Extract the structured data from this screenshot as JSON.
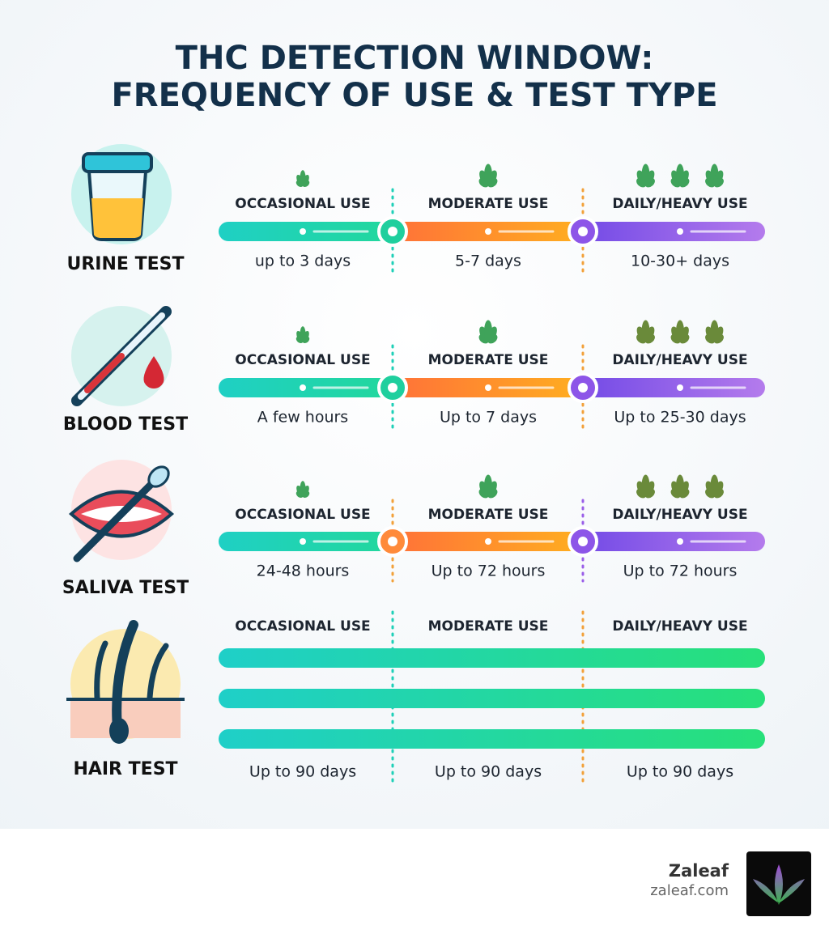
{
  "title": [
    "THC DETECTION WINDOW:",
    "FREQUENCY OF USE & TEST TYPE"
  ],
  "tests": [
    {
      "name": "URINE TEST",
      "levels": [
        "OCCASIONAL USE",
        "MODERATE USE",
        "DAILY/HEAVY USE"
      ],
      "durations": [
        "up to 3 days",
        "5-7 days",
        "10-30+ days"
      ]
    },
    {
      "name": "BLOOD TEST",
      "levels": [
        "OCCASIONAL USE",
        "MODERATE USE",
        "DAILY/HEAVY USE"
      ],
      "durations": [
        "A few hours",
        "Up to 7 days",
        "Up to 25-30 days"
      ]
    },
    {
      "name": "SALIVA TEST",
      "levels": [
        "OCCASIONAL USE",
        "MODERATE USE",
        "DAILY/HEAVY USE"
      ],
      "durations": [
        "24-48 hours",
        "Up to 72 hours",
        "Up to 72 hours"
      ]
    },
    {
      "name": "HAIR TEST",
      "levels": [
        "OCCASIONAL USE",
        "MODERATE USE",
        "DAILY/HEAVY USE"
      ],
      "durations": [
        "Up to 90 days",
        "Up to 90 days",
        "Up to 90 days"
      ]
    }
  ],
  "footer": {
    "brand": "Zaleaf",
    "url": "zaleaf.com"
  }
}
